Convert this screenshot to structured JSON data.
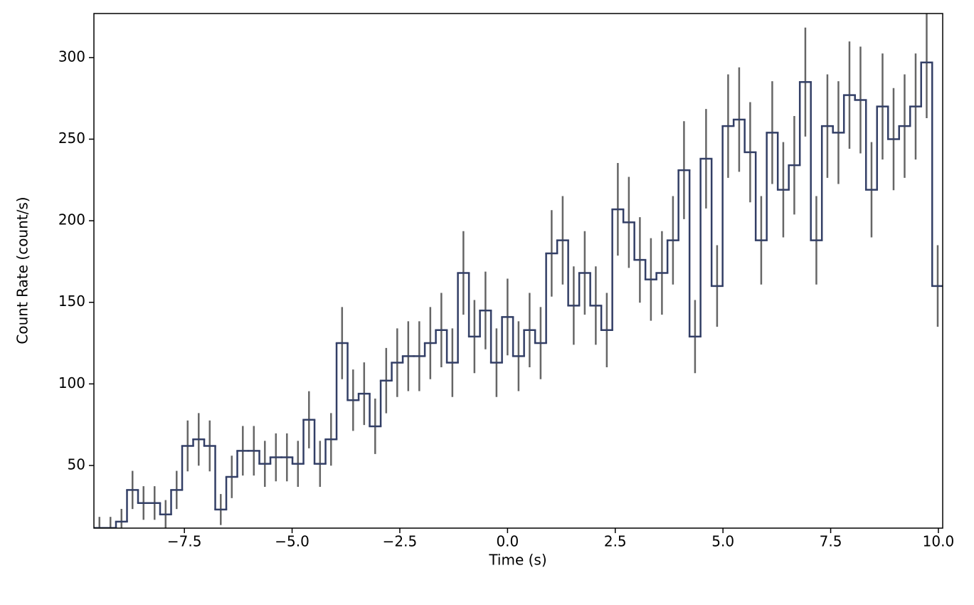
{
  "chart_data": {
    "type": "step",
    "xlabel": "Time (s)",
    "ylabel": "Count Rate (count/s)",
    "color": "#333f66",
    "error_color": "#666666",
    "x": [
      -9.472,
      -9.216,
      -8.96,
      -8.704,
      -8.448,
      -8.192,
      -7.936,
      -7.68,
      -7.424,
      -7.168,
      -6.912,
      -6.656,
      -6.4,
      -6.144,
      -5.888,
      -5.632,
      -5.376,
      -5.12,
      -4.864,
      -4.608,
      -4.352,
      -4.096,
      -3.84,
      -3.584,
      -3.328,
      -3.072,
      -2.816,
      -2.56,
      -2.304,
      -2.048,
      -1.792,
      -1.536,
      -1.28,
      -1.024,
      -0.768,
      -0.512,
      -0.256,
      0,
      0.256,
      0.512,
      0.768,
      1.024,
      1.28,
      1.536,
      1.792,
      2.048,
      2.304,
      2.56,
      2.816,
      3.072,
      3.328,
      3.584,
      3.84,
      4.096,
      4.352,
      4.608,
      4.864,
      5.12,
      5.376,
      5.632,
      5.888,
      6.144,
      6.4,
      6.656,
      6.912,
      7.168,
      7.424,
      7.68,
      7.936,
      8.192,
      8.448,
      8.704,
      8.96,
      9.216,
      9.472,
      9.728,
      9.984
    ],
    "values": [
      11.7,
      11.7,
      15.6,
      35,
      27,
      27,
      20,
      35,
      62,
      66,
      62,
      23,
      43,
      59,
      59,
      51,
      55,
      55,
      51,
      78,
      51,
      66,
      125,
      90,
      94,
      74,
      102,
      113,
      117,
      117,
      125,
      133,
      113,
      168,
      129,
      145,
      113,
      141,
      117,
      133,
      125,
      180,
      188,
      148,
      168,
      148,
      133,
      207,
      199,
      176,
      164,
      168,
      188,
      231,
      129,
      238,
      160,
      258,
      262,
      242,
      188,
      254,
      219,
      234,
      285,
      188,
      258,
      254,
      277,
      274,
      219,
      270,
      250,
      258,
      270,
      297,
      160
    ],
    "errors": [
      6.8,
      6.8,
      7.8,
      11.7,
      10.3,
      10.3,
      8.8,
      11.7,
      15.6,
      16.1,
      15.6,
      9.5,
      13.0,
      15.2,
      15.2,
      14.1,
      14.7,
      14.7,
      14.1,
      17.5,
      14.1,
      16.1,
      22.1,
      18.8,
      19.2,
      17.0,
      20.0,
      21.0,
      21.4,
      21.4,
      22.1,
      22.8,
      21.0,
      25.6,
      22.4,
      23.8,
      21.0,
      23.5,
      21.4,
      22.8,
      22.1,
      26.5,
      27.1,
      24.0,
      25.6,
      24.0,
      22.8,
      28.4,
      27.9,
      26.2,
      25.3,
      25.6,
      27.1,
      30.0,
      22.4,
      30.5,
      25.0,
      31.7,
      32.0,
      30.7,
      27.1,
      31.5,
      29.2,
      30.2,
      33.4,
      27.1,
      31.7,
      31.5,
      32.9,
      32.7,
      29.2,
      32.5,
      31.3,
      31.7,
      32.5,
      34.1,
      25.0
    ],
    "xlim": [
      -9.6,
      10.1
    ],
    "ylim": [
      11.6,
      327
    ],
    "xticks": [
      {
        "value": -7.5,
        "label": "−7.5"
      },
      {
        "value": -5,
        "label": "−5.0"
      },
      {
        "value": -2.5,
        "label": "−2.5"
      },
      {
        "value": 0,
        "label": "0.0"
      },
      2.5,
      {
        "value": 5,
        "label": "5.0"
      },
      7.5,
      {
        "value": 10,
        "label": "10.0"
      }
    ],
    "yticks": [
      50,
      100,
      150,
      200,
      250,
      300
    ]
  }
}
